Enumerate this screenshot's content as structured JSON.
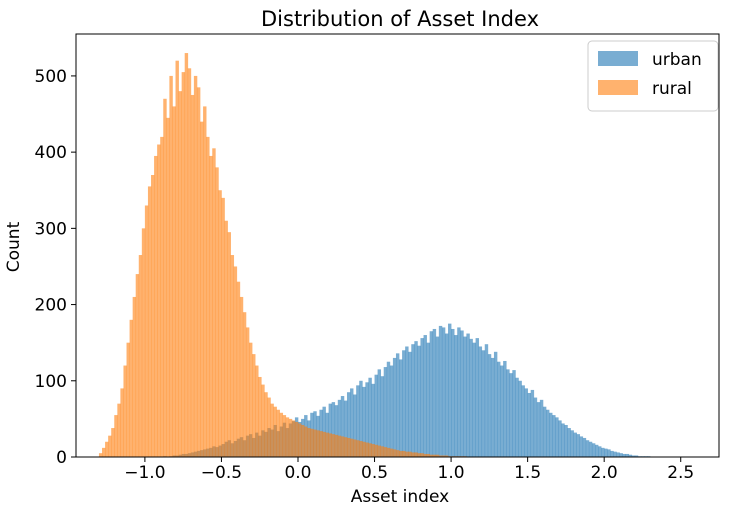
{
  "chart_data": {
    "type": "histogram",
    "title": "Distribution of Asset Index",
    "xlabel": "Asset index",
    "ylabel": "Count",
    "xlim": [
      -1.45,
      2.75
    ],
    "ylim": [
      0,
      555
    ],
    "xticks": [
      -1.0,
      -0.5,
      0.0,
      0.5,
      1.0,
      1.5,
      2.0,
      2.5
    ],
    "xtick_labels": [
      "−1.0",
      "−0.5",
      "0.0",
      "0.5",
      "1.0",
      "1.5",
      "2.0",
      "2.5"
    ],
    "yticks": [
      0,
      100,
      200,
      300,
      400,
      500
    ],
    "ytick_labels": [
      "0",
      "100",
      "200",
      "300",
      "400",
      "500"
    ],
    "grid": false,
    "legend_position": "top-right",
    "series": [
      {
        "name": "urban",
        "color": "#1f77b4",
        "alpha": 0.6,
        "bin_start": -1.0,
        "bin_width": 0.02,
        "counts": [
          0,
          0,
          0,
          0,
          0,
          0,
          1,
          0,
          1,
          2,
          2,
          3,
          4,
          4,
          5,
          6,
          7,
          8,
          9,
          10,
          11,
          12,
          14,
          13,
          15,
          17,
          20,
          22,
          18,
          21,
          24,
          26,
          22,
          28,
          30,
          25,
          32,
          28,
          35,
          33,
          38,
          36,
          42,
          34,
          40,
          45,
          38,
          44,
          47,
          52,
          46,
          50,
          55,
          48,
          58,
          60,
          54,
          62,
          66,
          58,
          70,
          72,
          68,
          75,
          80,
          74,
          85,
          90,
          82,
          94,
          100,
          92,
          98,
          104,
          96,
          108,
          115,
          106,
          118,
          125,
          120,
          130,
          136,
          128,
          140,
          145,
          138,
          148,
          152,
          146,
          156,
          160,
          150,
          165,
          168,
          158,
          172,
          170,
          162,
          175,
          168,
          160,
          170,
          166,
          158,
          162,
          155,
          150,
          156,
          145,
          140,
          148,
          135,
          130,
          138,
          125,
          120,
          126,
          115,
          110,
          114,
          104,
          100,
          94,
          90,
          84,
          88,
          78,
          72,
          75,
          66,
          62,
          58,
          55,
          52,
          48,
          44,
          42,
          38,
          35,
          32,
          30,
          27,
          25,
          22,
          20,
          18,
          16,
          14,
          12,
          11,
          10,
          8,
          7,
          6,
          5,
          4,
          4,
          3,
          2,
          2,
          1,
          1,
          1,
          1,
          0,
          0,
          0,
          0,
          0,
          0,
          0,
          0,
          0,
          0,
          0,
          0,
          0,
          0,
          0,
          0,
          0,
          0,
          0,
          0,
          0,
          0,
          0,
          0,
          0,
          0,
          0,
          0,
          0,
          0,
          0,
          0,
          0,
          0,
          0,
          0
        ]
      },
      {
        "name": "rural",
        "color": "#ff7f0e",
        "alpha": 0.6,
        "bin_start": -1.3,
        "bin_width": 0.02,
        "counts": [
          5,
          12,
          20,
          28,
          38,
          55,
          70,
          90,
          120,
          150,
          180,
          210,
          240,
          265,
          300,
          330,
          355,
          370,
          395,
          410,
          420,
          470,
          445,
          500,
          460,
          520,
          480,
          505,
          530,
          510,
          475,
          500,
          485,
          440,
          460,
          420,
          395,
          405,
          380,
          350,
          340,
          310,
          295,
          265,
          250,
          230,
          210,
          190,
          170,
          150,
          135,
          120,
          105,
          95,
          85,
          78,
          70,
          66,
          62,
          58,
          55,
          52,
          50,
          48,
          46,
          44,
          42,
          40,
          38,
          37,
          36,
          35,
          34,
          33,
          32,
          31,
          30,
          29,
          28,
          27,
          26,
          25,
          24,
          23,
          22,
          21,
          20,
          19,
          18,
          17,
          16,
          15,
          14,
          13,
          12,
          11,
          10,
          9,
          8,
          8,
          7,
          7,
          6,
          6,
          5,
          5,
          4,
          4,
          3,
          3,
          3,
          2,
          2,
          2,
          1,
          1,
          1,
          1,
          1,
          1,
          0,
          0,
          0,
          0,
          0,
          0,
          0,
          0,
          0,
          0,
          0,
          0,
          0,
          0,
          0,
          0,
          0,
          0,
          0,
          0,
          0,
          0,
          0,
          0,
          0,
          0,
          0,
          0,
          0,
          0,
          0,
          0,
          0,
          0,
          0,
          0,
          0,
          0,
          0,
          0,
          0,
          0,
          0,
          0,
          0,
          0,
          0,
          0,
          0,
          0,
          0,
          0,
          0,
          0,
          0,
          0,
          0,
          0,
          0,
          0,
          0,
          0,
          0,
          0,
          0,
          0,
          0,
          0,
          0,
          0,
          0,
          0,
          0,
          0,
          0,
          0,
          0,
          0,
          0,
          0,
          0,
          0,
          0,
          0,
          0,
          0,
          0,
          0,
          0,
          0,
          0,
          0,
          0,
          0
        ]
      }
    ]
  }
}
